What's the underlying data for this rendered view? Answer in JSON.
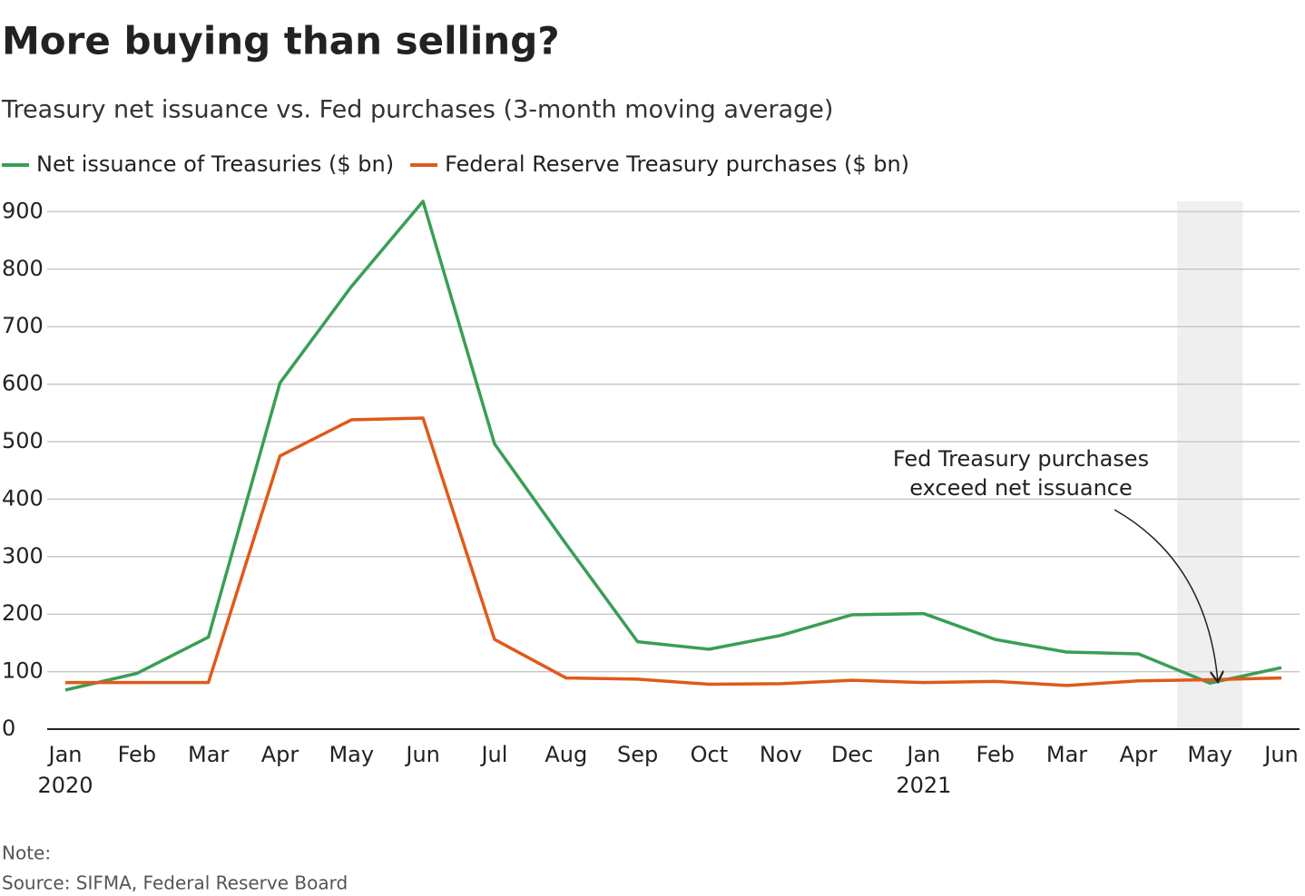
{
  "chart_data": {
    "type": "line",
    "title": "More buying than selling?",
    "subtitle": "Treasury net issuance vs. Fed purchases (3-month moving average)",
    "categories": [
      "Jan 2020",
      "Feb",
      "Mar",
      "Apr",
      "May",
      "Jun",
      "Jul",
      "Aug",
      "Sep",
      "Oct",
      "Nov",
      "Dec",
      "Jan 2021",
      "Feb",
      "Mar",
      "Apr",
      "May",
      "Jun"
    ],
    "series": [
      {
        "name": "Net issuance of Treasuries ($ bn)",
        "color": "#3a9e55",
        "values": [
          68,
          97,
          160,
          602,
          770,
          918,
          496,
          322,
          152,
          139,
          163,
          199,
          201,
          156,
          134,
          131,
          80,
          107
        ]
      },
      {
        "name": "Federal Reserve Treasury purchases ($ bn)",
        "color": "#e05a1a",
        "values": [
          81,
          81,
          81,
          475,
          538,
          541,
          156,
          89,
          87,
          78,
          79,
          85,
          81,
          83,
          76,
          84,
          86,
          89
        ]
      }
    ],
    "ylim": [
      0,
      918
    ],
    "yticks": [
      0,
      100,
      200,
      300,
      400,
      500,
      600,
      700,
      800,
      900
    ],
    "grid": true,
    "annotation": [
      "Fed  Treasury purchases",
      "exceed net issuance"
    ],
    "note": "Note:",
    "source": "Source: SIFMA, Federal Reserve Board"
  }
}
